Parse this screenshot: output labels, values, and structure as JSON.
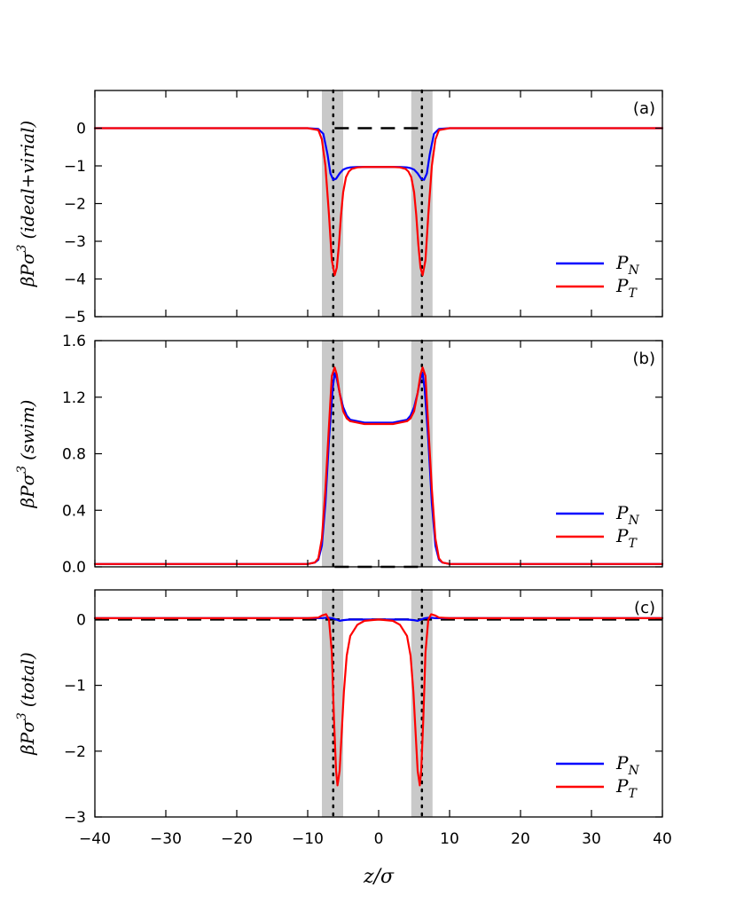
{
  "chart_data": [
    {
      "type": "line",
      "panel_label": "(a)",
      "ylabel": "βPσ³ (ideal+virial)",
      "ylabel_parts": {
        "base": "βPσ",
        "exp": "3",
        "paren": "(ideal+virial)"
      },
      "xlim": [
        -40,
        40
      ],
      "ylim": [
        -5,
        1
      ],
      "yticks": [
        0,
        -1,
        -2,
        -3,
        -4,
        -5
      ],
      "ytick_labels": [
        "0",
        "−1",
        "−2",
        "−3",
        "−4",
        "−5"
      ],
      "reference_line": {
        "y": 0,
        "x_range": [
          -6.2,
          6.2
        ],
        "style": "dashed"
      },
      "legend": {
        "placement": "lower-right",
        "entries": [
          "P_N",
          "P_T"
        ]
      },
      "series": [
        {
          "name": "P_N",
          "color": "#0000ff",
          "x": [
            -40,
            -10,
            -8.5,
            -7.8,
            -7.2,
            -6.8,
            -6.4,
            -6.0,
            -5.5,
            -5.0,
            -4.5,
            -4.0,
            -3.0,
            -2.0,
            -1.0,
            0,
            1.0,
            2.0,
            3.0,
            4.0,
            4.5,
            5.0,
            5.5,
            6.0,
            6.4,
            6.8,
            7.2,
            7.8,
            8.5,
            10,
            40
          ],
          "y": [
            0,
            0,
            -0.02,
            -0.15,
            -0.7,
            -1.2,
            -1.37,
            -1.34,
            -1.2,
            -1.1,
            -1.06,
            -1.04,
            -1.03,
            -1.03,
            -1.03,
            -1.03,
            -1.03,
            -1.03,
            -1.03,
            -1.04,
            -1.06,
            -1.1,
            -1.2,
            -1.34,
            -1.37,
            -1.2,
            -0.7,
            -0.15,
            -0.02,
            0,
            0
          ]
        },
        {
          "name": "P_T",
          "color": "#ff0000",
          "x": [
            -40,
            -10,
            -8.5,
            -8.0,
            -7.5,
            -7.0,
            -6.6,
            -6.2,
            -5.9,
            -5.6,
            -5.3,
            -5.0,
            -4.6,
            -4.2,
            -3.8,
            -3.0,
            -2.0,
            0,
            2.0,
            3.0,
            3.8,
            4.2,
            4.6,
            5.0,
            5.3,
            5.6,
            5.9,
            6.2,
            6.6,
            7.0,
            7.5,
            8.0,
            8.5,
            10,
            40
          ],
          "y": [
            0,
            0,
            -0.05,
            -0.3,
            -1.0,
            -2.3,
            -3.5,
            -3.9,
            -3.7,
            -3.1,
            -2.3,
            -1.7,
            -1.3,
            -1.15,
            -1.08,
            -1.04,
            -1.03,
            -1.03,
            -1.03,
            -1.04,
            -1.08,
            -1.15,
            -1.3,
            -1.7,
            -2.3,
            -3.1,
            -3.7,
            -3.9,
            -3.5,
            -2.3,
            -1.0,
            -0.3,
            -0.05,
            0,
            0
          ]
        }
      ]
    },
    {
      "type": "line",
      "panel_label": "(b)",
      "ylabel": "βPσ³ (swim)",
      "ylabel_parts": {
        "base": "βPσ",
        "exp": "3",
        "paren": "(swim)"
      },
      "xlim": [
        -40,
        40
      ],
      "ylim": [
        0,
        1.6
      ],
      "yticks": [
        0.0,
        0.4,
        0.8,
        1.2,
        1.6
      ],
      "ytick_labels": [
        "0.0",
        "0.4",
        "0.8",
        "1.2",
        "1.6"
      ],
      "reference_line": {
        "y": 0,
        "x_range": [
          -6.2,
          6.2
        ],
        "style": "dashed"
      },
      "legend": {
        "placement": "lower-right",
        "entries": [
          "P_N",
          "P_T"
        ]
      },
      "series": [
        {
          "name": "P_N",
          "color": "#0000ff",
          "x": [
            -40,
            -10,
            -9.0,
            -8.5,
            -8.0,
            -7.5,
            -7.0,
            -6.5,
            -6.2,
            -5.9,
            -5.5,
            -5.0,
            -4.5,
            -4.0,
            -3.0,
            -2.0,
            0,
            2.0,
            3.0,
            4.0,
            4.5,
            5.0,
            5.5,
            5.9,
            6.2,
            6.5,
            7.0,
            7.5,
            8.0,
            8.5,
            9.0,
            10,
            40
          ],
          "y": [
            0.02,
            0.02,
            0.03,
            0.05,
            0.15,
            0.45,
            0.9,
            1.25,
            1.37,
            1.33,
            1.23,
            1.13,
            1.07,
            1.04,
            1.03,
            1.02,
            1.02,
            1.02,
            1.03,
            1.04,
            1.07,
            1.13,
            1.23,
            1.33,
            1.37,
            1.25,
            0.9,
            0.45,
            0.15,
            0.05,
            0.03,
            0.02,
            0.02
          ]
        },
        {
          "name": "P_T",
          "color": "#ff0000",
          "x": [
            -40,
            -10,
            -9.0,
            -8.5,
            -8.0,
            -7.5,
            -7.0,
            -6.6,
            -6.2,
            -5.9,
            -5.5,
            -5.0,
            -4.5,
            -4.0,
            -3.0,
            -2.0,
            0,
            2.0,
            3.0,
            4.0,
            4.5,
            5.0,
            5.5,
            5.9,
            6.2,
            6.6,
            7.0,
            7.5,
            8.0,
            8.5,
            9.0,
            10,
            40
          ],
          "y": [
            0.02,
            0.02,
            0.03,
            0.06,
            0.2,
            0.55,
            1.0,
            1.35,
            1.41,
            1.36,
            1.23,
            1.1,
            1.05,
            1.03,
            1.02,
            1.01,
            1.01,
            1.01,
            1.02,
            1.03,
            1.05,
            1.1,
            1.23,
            1.36,
            1.41,
            1.35,
            1.0,
            0.55,
            0.2,
            0.06,
            0.03,
            0.02,
            0.02
          ]
        }
      ]
    },
    {
      "type": "line",
      "panel_label": "(c)",
      "ylabel": "βPσ³ (total)",
      "ylabel_parts": {
        "base": "βPσ",
        "exp": "3",
        "paren": "(total)"
      },
      "xlabel": "z/σ",
      "xlim": [
        -40,
        40
      ],
      "ylim": [
        -3,
        0.45
      ],
      "yticks": [
        0,
        -1,
        -2,
        -3
      ],
      "ytick_labels": [
        "0",
        "−1",
        "−2",
        "−3"
      ],
      "xticks": [
        -40,
        -30,
        -20,
        -10,
        0,
        10,
        20,
        30,
        40
      ],
      "xtick_labels": [
        "−40",
        "−30",
        "−20",
        "−10",
        "0",
        "10",
        "20",
        "30",
        "40"
      ],
      "reference_line": {
        "y": 0,
        "x_range": [
          -40,
          40
        ],
        "style": "dashed"
      },
      "legend": {
        "placement": "lower-right",
        "entries": [
          "P_N",
          "P_T"
        ]
      },
      "series": [
        {
          "name": "P_N",
          "color": "#0000ff",
          "x": [
            -40,
            -10,
            -8.0,
            -7.2,
            -6.5,
            -6.0,
            -5.5,
            -5.0,
            -4.0,
            -2.0,
            0,
            2.0,
            4.0,
            5.0,
            5.5,
            6.0,
            6.5,
            7.2,
            8.0,
            10,
            40
          ],
          "y": [
            0.02,
            0.02,
            0.02,
            0.03,
            0.02,
            0.0,
            -0.02,
            -0.01,
            0.0,
            0.0,
            0.0,
            0.0,
            0.0,
            -0.01,
            -0.02,
            0.0,
            0.02,
            0.03,
            0.02,
            0.02,
            0.02
          ]
        },
        {
          "name": "P_T",
          "color": "#ff0000",
          "x": [
            -40,
            -10,
            -8.5,
            -8.0,
            -7.4,
            -7.0,
            -6.6,
            -6.3,
            -6.0,
            -5.8,
            -5.5,
            -5.2,
            -4.9,
            -4.5,
            -4.0,
            -3.0,
            -2.0,
            0,
            2.0,
            3.0,
            4.0,
            4.5,
            4.9,
            5.2,
            5.5,
            5.8,
            6.0,
            6.3,
            6.6,
            7.0,
            7.4,
            8.0,
            8.5,
            10,
            40
          ],
          "y": [
            0.02,
            0.02,
            0.03,
            0.06,
            0.08,
            0.0,
            -0.5,
            -1.5,
            -2.3,
            -2.52,
            -2.3,
            -1.7,
            -1.1,
            -0.55,
            -0.25,
            -0.08,
            -0.02,
            0.0,
            -0.02,
            -0.08,
            -0.25,
            -0.55,
            -1.1,
            -1.7,
            -2.3,
            -2.52,
            -2.3,
            -1.5,
            -0.5,
            0.0,
            0.08,
            0.06,
            0.03,
            0.02,
            0.02
          ]
        }
      ]
    }
  ],
  "shared": {
    "shaded_bands": [
      [
        -8.0,
        -5.0
      ],
      [
        4.6,
        7.6
      ]
    ],
    "dotted_lines": [
      -6.4,
      6.1
    ],
    "band_color": "#c9c9c9",
    "legend_labels": [
      {
        "base": "P",
        "sub": "N"
      },
      {
        "base": "P",
        "sub": "T"
      }
    ]
  }
}
